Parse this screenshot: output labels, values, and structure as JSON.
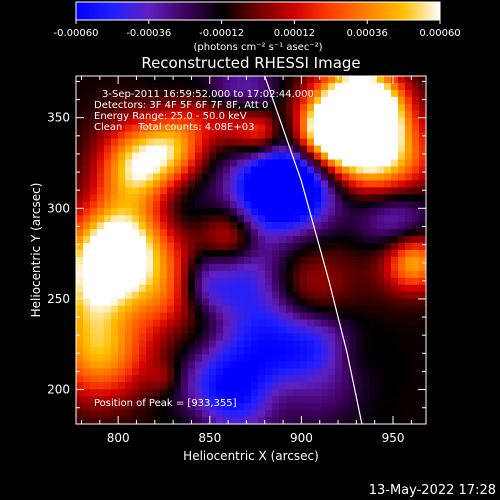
{
  "colorbar": {
    "tick_labels": [
      "-0.00060",
      "-0.00036",
      "-0.00012",
      "0.00012",
      "0.00036",
      "0.00060"
    ],
    "unit_label": "(photons cm⁻² s⁻¹ asec⁻²)",
    "range": [
      -0.0006,
      0.0006
    ],
    "stops": [
      "#0000ff",
      "#2020ff",
      "#6020c0",
      "#400060",
      "#000000",
      "#700000",
      "#d00000",
      "#ff4000",
      "#ff8000",
      "#ffc000",
      "#ffffff"
    ]
  },
  "chart_data": {
    "type": "heatmap",
    "title": "Reconstructed RHESSI Image",
    "xlabel": "Heliocentric X (arcsec)",
    "ylabel": "Heliocentric Y (arcsec)",
    "xlim": [
      777,
      968
    ],
    "ylim": [
      181,
      373
    ],
    "x_ticks": [
      800,
      850,
      900,
      950
    ],
    "y_ticks": [
      200,
      250,
      300,
      350
    ],
    "peak": [
      933,
      355
    ],
    "limb_curve": [
      [
        880,
        373
      ],
      [
        900,
        315
      ],
      [
        915,
        260
      ],
      [
        925,
        220
      ],
      [
        933,
        181
      ]
    ],
    "annotations": [
      "3-Sep-2011 16:59:52.000 to 17:02:44.000",
      "Detectors: 3F 4F 5F 6F 7F 8F, Att 0",
      "Energy Range: 25.0 - 50.0 keV",
      "Clean     Total counts: 4.08E+03"
    ],
    "peak_label": "Position of Peak = [933,355]"
  },
  "footer": {
    "timestamp": "13-May-2022 17:28"
  }
}
